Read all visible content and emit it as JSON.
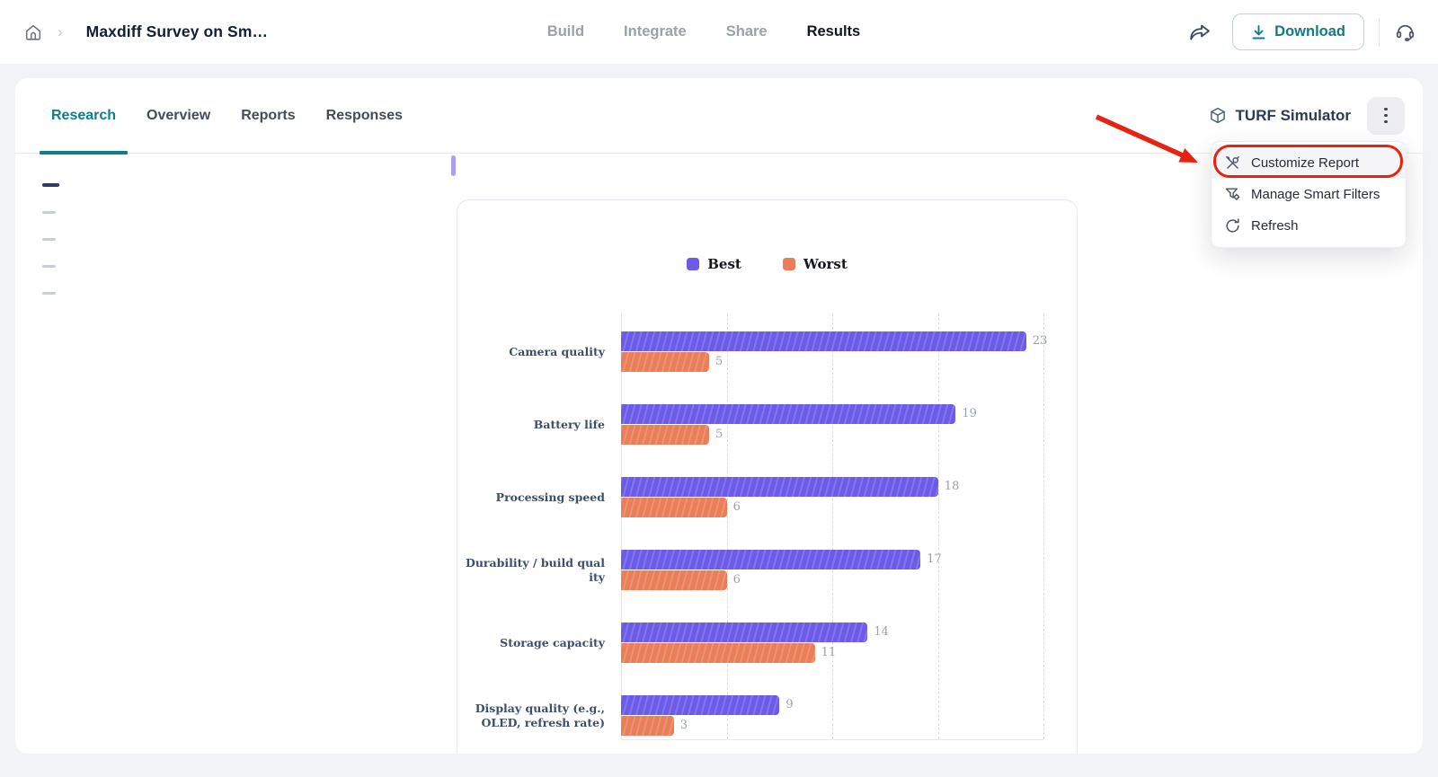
{
  "topbar": {
    "home_icon": "home-icon",
    "breadcrumb_chevron": "›",
    "title": "Maxdiff Survey on Sm…",
    "nav_tabs": [
      {
        "label": "Build",
        "active": false
      },
      {
        "label": "Integrate",
        "active": false
      },
      {
        "label": "Share",
        "active": false
      },
      {
        "label": "Results",
        "active": true
      }
    ],
    "share_icon": "share-forward-icon",
    "download_button": {
      "label": "Download",
      "icon": "download-icon"
    },
    "support_icon": "headset-icon"
  },
  "report_tabs": [
    {
      "label": "Research",
      "active": true
    },
    {
      "label": "Overview",
      "active": false
    },
    {
      "label": "Reports",
      "active": false
    },
    {
      "label": "Responses",
      "active": false
    }
  ],
  "turf_simulator": {
    "label": "TURF Simulator",
    "icon": "cube-icon"
  },
  "kebab_menu": {
    "icon": "kebab-icon",
    "open": true,
    "items": [
      {
        "label": "Customize Report",
        "icon": "customize-tools-icon",
        "annotated": true
      },
      {
        "label": "Manage Smart Filters",
        "icon": "filter-gear-icon",
        "annotated": false
      },
      {
        "label": "Refresh",
        "icon": "refresh-icon",
        "annotated": false
      }
    ]
  },
  "question_list": {
    "placeholder_rows": 5,
    "active_row": 1
  },
  "annotation": {
    "shape": "red-oval",
    "arrow": true,
    "target": "Customize Report",
    "color": "#E62310"
  },
  "chart_data": {
    "type": "bar",
    "orientation": "horizontal",
    "title": "",
    "categories": [
      "Camera quality",
      "Battery life",
      "Processing speed",
      "Durability / build quality",
      "Storage capacity",
      "Display quality (e.g., OLED, refresh rate)"
    ],
    "series": [
      {
        "name": "Best",
        "color": "#6C5BE8",
        "values": [
          23,
          19,
          18,
          17,
          14,
          9
        ]
      },
      {
        "name": "Worst",
        "color": "#E97E58",
        "values": [
          5,
          5,
          6,
          6,
          11,
          3
        ]
      }
    ],
    "xlim": [
      0,
      24
    ],
    "gridline_step": 6,
    "grid": "dashed-vertical",
    "legend_position": "top",
    "value_labels": "end-of-bar"
  },
  "colors": {
    "accent_teal": "#0E7D8C",
    "best_purple": "#6C5BE8",
    "worst_orange": "#E97E58",
    "annotation_red": "#E62310",
    "page_bg": "#F2F3F6"
  }
}
